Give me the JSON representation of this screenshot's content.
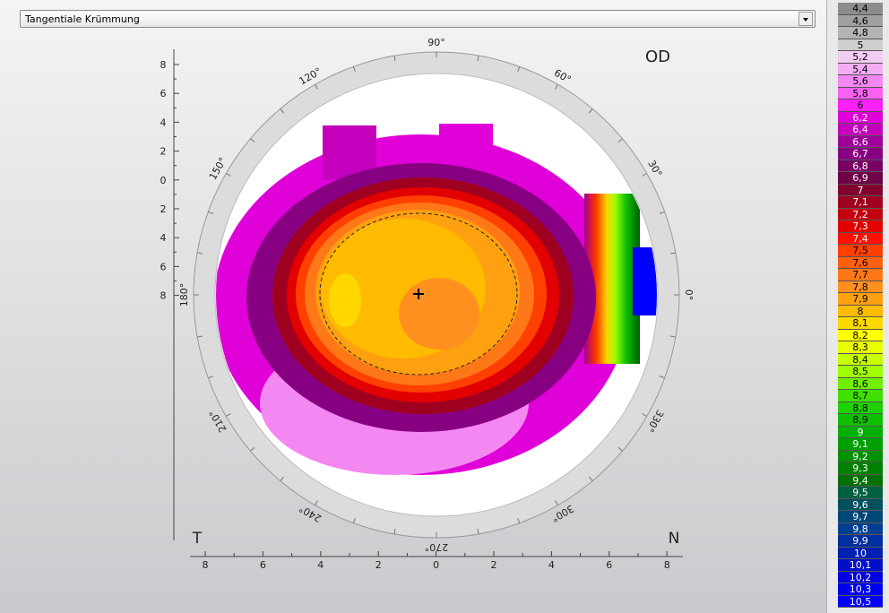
{
  "dropdown": {
    "label": "Tangentiale Krümmung"
  },
  "plot": {
    "eye": "OD",
    "left_marker": "T",
    "right_marker": "N",
    "angle_labels": [
      {
        "angle": 0,
        "label": "0°"
      },
      {
        "angle": 30,
        "label": "30°"
      },
      {
        "angle": 60,
        "label": "60°"
      },
      {
        "angle": 90,
        "label": "90°"
      },
      {
        "angle": 120,
        "label": "120°"
      },
      {
        "angle": 150,
        "label": "150°"
      },
      {
        "angle": 180,
        "label": "180°"
      },
      {
        "angle": 210,
        "label": "210°"
      },
      {
        "angle": 240,
        "label": "240°"
      },
      {
        "angle": 270,
        "label": "270°"
      },
      {
        "angle": 300,
        "label": "300°"
      },
      {
        "angle": 330,
        "label": "330°"
      }
    ],
    "y_axis_labels": [
      8,
      6,
      4,
      2,
      0,
      2,
      4,
      6,
      8
    ],
    "x_axis_labels": [
      8,
      6,
      4,
      2,
      0,
      2,
      4,
      6,
      8
    ]
  },
  "color_scale": [
    {
      "label": "4,4",
      "color": "#8c8c8c"
    },
    {
      "label": "4,6",
      "color": "#a0a0a0"
    },
    {
      "label": "4,8",
      "color": "#b4b4b4"
    },
    {
      "label": "5",
      "color": "#cfcfcf"
    },
    {
      "label": "5,2",
      "color": "#f2cdf2"
    },
    {
      "label": "5,4",
      "color": "#f3aef3"
    },
    {
      "label": "5,6",
      "color": "#f488f2"
    },
    {
      "label": "5,8",
      "color": "#f860f2"
    },
    {
      "label": "6",
      "color": "#ff20ff"
    },
    {
      "label": "6,2",
      "color": "#e000d8"
    },
    {
      "label": "6,4",
      "color": "#c400bc"
    },
    {
      "label": "6,6",
      "color": "#a0009a"
    },
    {
      "label": "6,7",
      "color": "#880082"
    },
    {
      "label": "6,8",
      "color": "#780064"
    },
    {
      "label": "6,9",
      "color": "#70004a"
    },
    {
      "label": "7",
      "color": "#820030"
    },
    {
      "label": "7,1",
      "color": "#a00020"
    },
    {
      "label": "7,2",
      "color": "#c40010"
    },
    {
      "label": "7,3",
      "color": "#e20000"
    },
    {
      "label": "7,4",
      "color": "#ff1000"
    },
    {
      "label": "7,5",
      "color": "#ff4000"
    },
    {
      "label": "7,6",
      "color": "#ff6010"
    },
    {
      "label": "7,7",
      "color": "#ff7818"
    },
    {
      "label": "7,8",
      "color": "#ff9020"
    },
    {
      "label": "7,9",
      "color": "#ffa010"
    },
    {
      "label": "8",
      "color": "#ffbb00"
    },
    {
      "label": "8,1",
      "color": "#ffd800"
    },
    {
      "label": "8,2",
      "color": "#ffff00"
    },
    {
      "label": "8,3",
      "color": "#e8ff00"
    },
    {
      "label": "8,4",
      "color": "#c8ff00"
    },
    {
      "label": "8,5",
      "color": "#a0ff00"
    },
    {
      "label": "8,6",
      "color": "#70f000"
    },
    {
      "label": "8,7",
      "color": "#40e000"
    },
    {
      "label": "8,8",
      "color": "#20d000"
    },
    {
      "label": "8,9",
      "color": "#10c000"
    },
    {
      "label": "9",
      "color": "#00b000"
    },
    {
      "label": "9,1",
      "color": "#00a000"
    },
    {
      "label": "9,2",
      "color": "#009000"
    },
    {
      "label": "9,3",
      "color": "#008000"
    },
    {
      "label": "9,4",
      "color": "#007000"
    },
    {
      "label": "9,5",
      "color": "#006040"
    },
    {
      "label": "9,6",
      "color": "#005060"
    },
    {
      "label": "9,7",
      "color": "#004878"
    },
    {
      "label": "9,8",
      "color": "#004090"
    },
    {
      "label": "9,9",
      "color": "#0030a0"
    },
    {
      "label": "10",
      "color": "#0020b0"
    },
    {
      "label": "10,1",
      "color": "#0010c8"
    },
    {
      "label": "10,2",
      "color": "#0000e0"
    },
    {
      "label": "10,3",
      "color": "#0000f0"
    },
    {
      "label": "10,5",
      "color": "#0000ff"
    }
  ]
}
